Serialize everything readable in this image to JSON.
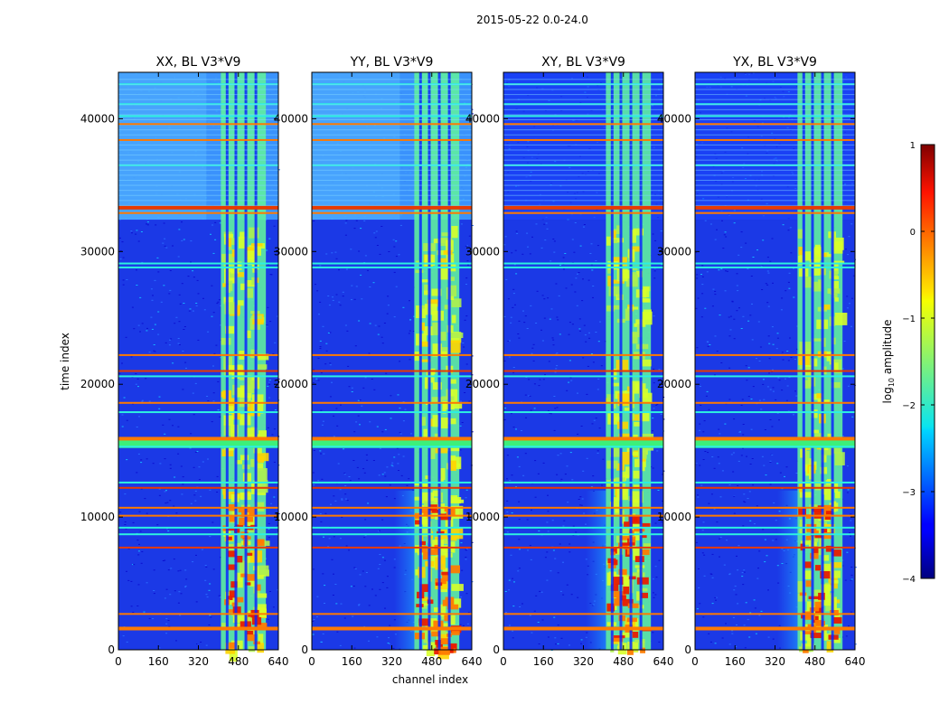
{
  "figure": {
    "suptitle": "2015-05-22 0.0-24.0",
    "xlabel": "channel index",
    "ylabel": "time index"
  },
  "chart_data": [
    {
      "type": "heatmap",
      "title": "XX, BL V3*V9",
      "x_range": [
        0,
        640
      ],
      "y_range": [
        0,
        43500
      ],
      "xticks": [
        0,
        160,
        320,
        480,
        640
      ],
      "yticks": [
        0,
        10000,
        20000,
        30000,
        40000
      ],
      "xlabel": "channel index",
      "ylabel": "time index",
      "cross_hand": false
    },
    {
      "type": "heatmap",
      "title": "YY, BL V3*V9",
      "x_range": [
        0,
        640
      ],
      "y_range": [
        0,
        43500
      ],
      "xticks": [
        0,
        160,
        320,
        480,
        640
      ],
      "yticks": [
        0,
        10000,
        20000,
        30000,
        40000
      ],
      "xlabel": "channel index",
      "ylabel": "",
      "cross_hand": false
    },
    {
      "type": "heatmap",
      "title": "XY, BL V3*V9",
      "x_range": [
        0,
        640
      ],
      "y_range": [
        0,
        43500
      ],
      "xticks": [
        0,
        160,
        320,
        480,
        640
      ],
      "yticks": [
        0,
        10000,
        20000,
        30000,
        40000
      ],
      "xlabel": "",
      "ylabel": "",
      "cross_hand": true
    },
    {
      "type": "heatmap",
      "title": "YX, BL V3*V9",
      "x_range": [
        0,
        640
      ],
      "y_range": [
        0,
        43500
      ],
      "xticks": [
        0,
        160,
        320,
        480,
        640
      ],
      "yticks": [
        0,
        10000,
        20000,
        30000,
        40000
      ],
      "xlabel": "",
      "ylabel": "",
      "cross_hand": true
    }
  ],
  "colorbar": {
    "label": "log10 amplitude",
    "label_main": "log",
    "label_sub": "10",
    "label_rest": " amplitude",
    "range": [
      -4,
      1
    ],
    "ticks": [
      1,
      0,
      -1,
      -2,
      -3,
      -4
    ],
    "tick_labels": [
      "1",
      "0",
      "−1",
      "−2",
      "−3",
      "−4"
    ],
    "colormap": "jet"
  },
  "features": {
    "rfi_band_channels": [
      410,
      590
    ],
    "rfi_columns": [
      435,
      470,
      510,
      550
    ],
    "high_rfi_region_time": [
      32400,
      43500
    ],
    "orange_flag_rows": [
      1600,
      2700,
      7700,
      10100,
      10700,
      12200,
      15900,
      18600,
      21000,
      22200,
      32900,
      33300,
      38400,
      39600
    ],
    "cyan_flag_rows": [
      8700,
      9200,
      12600,
      15300,
      17900,
      20600,
      28800,
      29100,
      36500,
      40200,
      41100,
      42600
    ],
    "wide_cyan_bands": [
      [
        15200,
        16000
      ]
    ]
  }
}
